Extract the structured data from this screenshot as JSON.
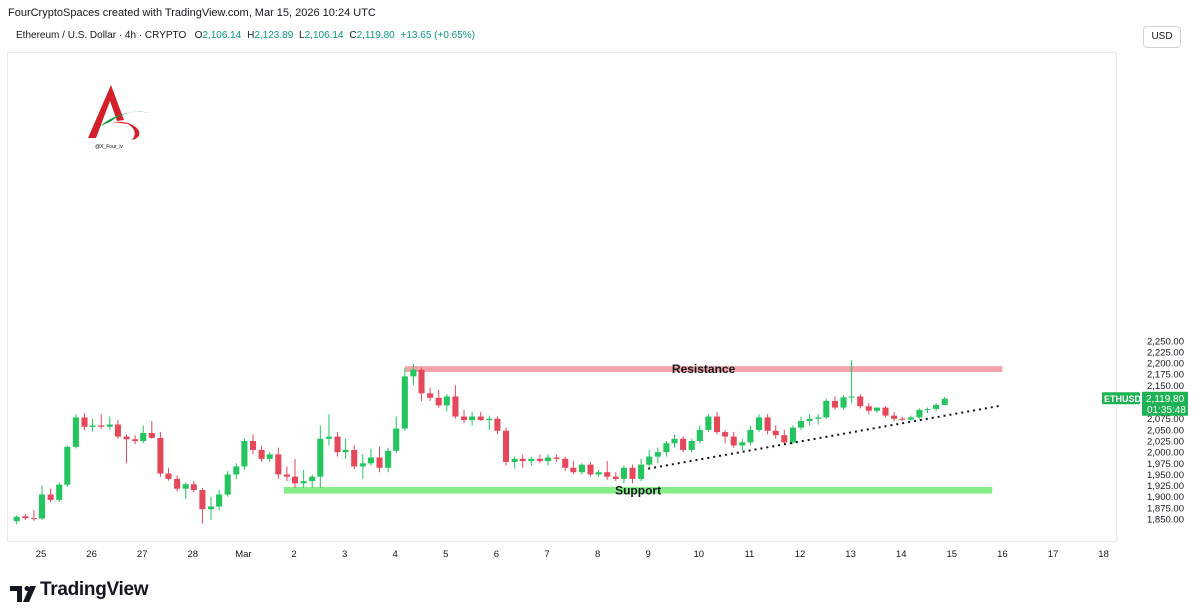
{
  "header": {
    "credit": "FourCryptoSpaces created with TradingView.com, Mar 15, 2026 10:24 UTC",
    "symbol_desc": "Ethereum / U.S. Dollar · 4h · CRYPTO",
    "o_label": "O",
    "o_value": "2,106.14",
    "h_label": "H",
    "h_value": "2,123.89",
    "l_label": "L",
    "l_value": "2,106.14",
    "c_label": "C",
    "c_value": "2,119.80",
    "change": "+13.65 (+0.65%)",
    "currency_button": "USD"
  },
  "logo": {
    "caption": "@X_Four_iv"
  },
  "footer": {
    "brand": "TradingView"
  },
  "price_badge": {
    "ticker": "ETHUSD",
    "price": "2,119.80",
    "countdown": "01:35:48"
  },
  "colors": {
    "up": "#22c55e",
    "down": "#e5485a",
    "resistance": "#f5a3a8",
    "support": "#86ee86",
    "badge": "#1fb254"
  },
  "chart_data": {
    "type": "candlestick",
    "title": "Ethereum / U.S. Dollar · 4h · CRYPTO",
    "xlabel": "",
    "ylabel": "",
    "ylim": [
      1828,
      2265
    ],
    "y_ticks": [
      1850,
      1875,
      1900,
      1925,
      1950,
      1975,
      2000,
      2025,
      2050,
      2075,
      2100,
      2125,
      2150,
      2175,
      2200,
      2225,
      2250
    ],
    "y_tick_labels": [
      "1,850.00",
      "1,875.00",
      "1,900.00",
      "1,925.00",
      "1,950.00",
      "1,975.00",
      "2,000.00",
      "2,025.00",
      "2,050.00",
      "2,075.00",
      "2,100.00",
      "2,125.00",
      "2,150.00",
      "2,175.00",
      "2,200.00",
      "2,225.00",
      "2,250.00"
    ],
    "x_tick_labels": [
      "25",
      "26",
      "27",
      "28",
      "Mar",
      "2",
      "3",
      "4",
      "5",
      "6",
      "7",
      "8",
      "9",
      "10",
      "11",
      "12",
      "13",
      "14",
      "15",
      "16",
      "17",
      "18"
    ],
    "x_tick_days": [
      0,
      1,
      2,
      3,
      4,
      5,
      6,
      7,
      8,
      9,
      10,
      11,
      12,
      13,
      14,
      15,
      16,
      17,
      18,
      19,
      20,
      21
    ],
    "candle_period_days": 0.16667,
    "candles": [
      {
        "t": -0.48,
        "o": 1845,
        "h": 1858,
        "l": 1838,
        "c": 1855
      },
      {
        "t": -0.31,
        "o": 1856,
        "h": 1862,
        "l": 1848,
        "c": 1852
      },
      {
        "t": -0.14,
        "o": 1852,
        "h": 1870,
        "l": 1846,
        "c": 1851
      },
      {
        "t": 0.02,
        "o": 1851,
        "h": 1925,
        "l": 1848,
        "c": 1905
      },
      {
        "t": 0.19,
        "o": 1905,
        "h": 1918,
        "l": 1888,
        "c": 1893
      },
      {
        "t": 0.36,
        "o": 1893,
        "h": 1932,
        "l": 1888,
        "c": 1927
      },
      {
        "t": 0.52,
        "o": 1927,
        "h": 2015,
        "l": 1922,
        "c": 2012
      },
      {
        "t": 0.69,
        "o": 2012,
        "h": 2085,
        "l": 2008,
        "c": 2078
      },
      {
        "t": 0.86,
        "o": 2078,
        "h": 2088,
        "l": 2050,
        "c": 2057
      },
      {
        "t": 1.02,
        "o": 2057,
        "h": 2075,
        "l": 2046,
        "c": 2060
      },
      {
        "t": 1.19,
        "o": 2060,
        "h": 2085,
        "l": 2052,
        "c": 2057
      },
      {
        "t": 1.36,
        "o": 2057,
        "h": 2080,
        "l": 2050,
        "c": 2062
      },
      {
        "t": 1.52,
        "o": 2062,
        "h": 2072,
        "l": 2030,
        "c": 2035
      },
      {
        "t": 1.69,
        "o": 2035,
        "h": 2040,
        "l": 1975,
        "c": 2029
      },
      {
        "t": 1.86,
        "o": 2029,
        "h": 2038,
        "l": 2018,
        "c": 2025
      },
      {
        "t": 2.02,
        "o": 2025,
        "h": 2060,
        "l": 2020,
        "c": 2043
      },
      {
        "t": 2.19,
        "o": 2043,
        "h": 2070,
        "l": 2030,
        "c": 2032
      },
      {
        "t": 2.36,
        "o": 2032,
        "h": 2045,
        "l": 1945,
        "c": 1952
      },
      {
        "t": 2.52,
        "o": 1952,
        "h": 1965,
        "l": 1936,
        "c": 1940
      },
      {
        "t": 2.69,
        "o": 1940,
        "h": 1948,
        "l": 1912,
        "c": 1918
      },
      {
        "t": 2.86,
        "o": 1918,
        "h": 1932,
        "l": 1895,
        "c": 1928
      },
      {
        "t": 3.02,
        "o": 1928,
        "h": 1935,
        "l": 1910,
        "c": 1915
      },
      {
        "t": 3.19,
        "o": 1915,
        "h": 1920,
        "l": 1840,
        "c": 1872
      },
      {
        "t": 3.36,
        "o": 1872,
        "h": 1900,
        "l": 1848,
        "c": 1878
      },
      {
        "t": 3.52,
        "o": 1878,
        "h": 1915,
        "l": 1870,
        "c": 1905
      },
      {
        "t": 3.69,
        "o": 1905,
        "h": 1958,
        "l": 1900,
        "c": 1950
      },
      {
        "t": 3.86,
        "o": 1950,
        "h": 1975,
        "l": 1940,
        "c": 1968
      },
      {
        "t": 4.02,
        "o": 1968,
        "h": 2030,
        "l": 1960,
        "c": 2025
      },
      {
        "t": 4.19,
        "o": 2025,
        "h": 2040,
        "l": 1995,
        "c": 2005
      },
      {
        "t": 4.36,
        "o": 2005,
        "h": 2015,
        "l": 1978,
        "c": 1985
      },
      {
        "t": 4.52,
        "o": 1985,
        "h": 2000,
        "l": 1978,
        "c": 1995
      },
      {
        "t": 4.69,
        "o": 1995,
        "h": 2010,
        "l": 1940,
        "c": 1950
      },
      {
        "t": 4.86,
        "o": 1950,
        "h": 1968,
        "l": 1935,
        "c": 1945
      },
      {
        "t": 5.02,
        "o": 1945,
        "h": 1985,
        "l": 1920,
        "c": 1930
      },
      {
        "t": 5.19,
        "o": 1930,
        "h": 1960,
        "l": 1920,
        "c": 1935
      },
      {
        "t": 5.36,
        "o": 1935,
        "h": 1950,
        "l": 1920,
        "c": 1945
      },
      {
        "t": 5.52,
        "o": 1945,
        "h": 2060,
        "l": 1920,
        "c": 2030
      },
      {
        "t": 5.69,
        "o": 2030,
        "h": 2085,
        "l": 2015,
        "c": 2035
      },
      {
        "t": 5.86,
        "o": 2035,
        "h": 2045,
        "l": 1990,
        "c": 2000
      },
      {
        "t": 6.02,
        "o": 2000,
        "h": 2030,
        "l": 1985,
        "c": 2005
      },
      {
        "t": 6.19,
        "o": 2005,
        "h": 2015,
        "l": 1962,
        "c": 1968
      },
      {
        "t": 6.36,
        "o": 1968,
        "h": 1995,
        "l": 1940,
        "c": 1975
      },
      {
        "t": 6.52,
        "o": 1975,
        "h": 2008,
        "l": 1970,
        "c": 1988
      },
      {
        "t": 6.69,
        "o": 1988,
        "h": 2012,
        "l": 1955,
        "c": 1965
      },
      {
        "t": 6.86,
        "o": 1965,
        "h": 2010,
        "l": 1955,
        "c": 2003
      },
      {
        "t": 7.02,
        "o": 2003,
        "h": 2080,
        "l": 1998,
        "c": 2053
      },
      {
        "t": 7.19,
        "o": 2053,
        "h": 2188,
        "l": 2048,
        "c": 2170
      },
      {
        "t": 7.36,
        "o": 2170,
        "h": 2198,
        "l": 2150,
        "c": 2185
      },
      {
        "t": 7.52,
        "o": 2185,
        "h": 2190,
        "l": 2115,
        "c": 2132
      },
      {
        "t": 7.69,
        "o": 2132,
        "h": 2145,
        "l": 2115,
        "c": 2122
      },
      {
        "t": 7.86,
        "o": 2122,
        "h": 2140,
        "l": 2100,
        "c": 2105
      },
      {
        "t": 8.02,
        "o": 2105,
        "h": 2130,
        "l": 2092,
        "c": 2125
      },
      {
        "t": 8.19,
        "o": 2125,
        "h": 2150,
        "l": 2075,
        "c": 2080
      },
      {
        "t": 8.36,
        "o": 2080,
        "h": 2095,
        "l": 2065,
        "c": 2072
      },
      {
        "t": 8.52,
        "o": 2072,
        "h": 2090,
        "l": 2060,
        "c": 2080
      },
      {
        "t": 8.69,
        "o": 2080,
        "h": 2090,
        "l": 2070,
        "c": 2072
      },
      {
        "t": 8.86,
        "o": 2072,
        "h": 2082,
        "l": 2050,
        "c": 2075
      },
      {
        "t": 9.02,
        "o": 2075,
        "h": 2080,
        "l": 2040,
        "c": 2048
      },
      {
        "t": 9.19,
        "o": 2048,
        "h": 2055,
        "l": 1970,
        "c": 1978
      },
      {
        "t": 9.36,
        "o": 1978,
        "h": 1990,
        "l": 1963,
        "c": 1985
      },
      {
        "t": 9.52,
        "o": 1985,
        "h": 1995,
        "l": 1965,
        "c": 1980
      },
      {
        "t": 9.69,
        "o": 1980,
        "h": 1990,
        "l": 1970,
        "c": 1985
      },
      {
        "t": 9.86,
        "o": 1985,
        "h": 1995,
        "l": 1975,
        "c": 1980
      },
      {
        "t": 10.02,
        "o": 1980,
        "h": 1995,
        "l": 1970,
        "c": 1988
      },
      {
        "t": 10.19,
        "o": 1988,
        "h": 1995,
        "l": 1978,
        "c": 1985
      },
      {
        "t": 10.36,
        "o": 1985,
        "h": 1990,
        "l": 1958,
        "c": 1965
      },
      {
        "t": 10.52,
        "o": 1965,
        "h": 1980,
        "l": 1950,
        "c": 1955
      },
      {
        "t": 10.69,
        "o": 1955,
        "h": 1975,
        "l": 1950,
        "c": 1972
      },
      {
        "t": 10.86,
        "o": 1972,
        "h": 1978,
        "l": 1945,
        "c": 1950
      },
      {
        "t": 11.02,
        "o": 1950,
        "h": 1960,
        "l": 1945,
        "c": 1955
      },
      {
        "t": 11.19,
        "o": 1955,
        "h": 1980,
        "l": 1938,
        "c": 1945
      },
      {
        "t": 11.36,
        "o": 1945,
        "h": 1955,
        "l": 1935,
        "c": 1940
      },
      {
        "t": 11.52,
        "o": 1940,
        "h": 1970,
        "l": 1930,
        "c": 1965
      },
      {
        "t": 11.69,
        "o": 1965,
        "h": 1972,
        "l": 1930,
        "c": 1940
      },
      {
        "t": 11.86,
        "o": 1940,
        "h": 1985,
        "l": 1935,
        "c": 1972
      },
      {
        "t": 12.02,
        "o": 1972,
        "h": 2005,
        "l": 1968,
        "c": 1990
      },
      {
        "t": 12.19,
        "o": 1990,
        "h": 2010,
        "l": 1975,
        "c": 2000
      },
      {
        "t": 12.36,
        "o": 2000,
        "h": 2025,
        "l": 1990,
        "c": 2020
      },
      {
        "t": 12.52,
        "o": 2020,
        "h": 2040,
        "l": 2010,
        "c": 2030
      },
      {
        "t": 12.69,
        "o": 2030,
        "h": 2035,
        "l": 2000,
        "c": 2005
      },
      {
        "t": 12.86,
        "o": 2005,
        "h": 2030,
        "l": 2000,
        "c": 2025
      },
      {
        "t": 13.02,
        "o": 2025,
        "h": 2060,
        "l": 2020,
        "c": 2050
      },
      {
        "t": 13.19,
        "o": 2050,
        "h": 2085,
        "l": 2045,
        "c": 2080
      },
      {
        "t": 13.36,
        "o": 2080,
        "h": 2090,
        "l": 2040,
        "c": 2045
      },
      {
        "t": 13.52,
        "o": 2045,
        "h": 2050,
        "l": 2020,
        "c": 2035
      },
      {
        "t": 13.69,
        "o": 2035,
        "h": 2045,
        "l": 2010,
        "c": 2015
      },
      {
        "t": 13.86,
        "o": 2015,
        "h": 2030,
        "l": 2005,
        "c": 2022
      },
      {
        "t": 14.02,
        "o": 2022,
        "h": 2060,
        "l": 2015,
        "c": 2050
      },
      {
        "t": 14.19,
        "o": 2050,
        "h": 2085,
        "l": 2045,
        "c": 2078
      },
      {
        "t": 14.36,
        "o": 2078,
        "h": 2085,
        "l": 2040,
        "c": 2048
      },
      {
        "t": 14.52,
        "o": 2048,
        "h": 2060,
        "l": 2030,
        "c": 2038
      },
      {
        "t": 14.69,
        "o": 2038,
        "h": 2050,
        "l": 2018,
        "c": 2022
      },
      {
        "t": 14.86,
        "o": 2022,
        "h": 2060,
        "l": 2018,
        "c": 2055
      },
      {
        "t": 15.02,
        "o": 2055,
        "h": 2080,
        "l": 2050,
        "c": 2070
      },
      {
        "t": 15.19,
        "o": 2070,
        "h": 2085,
        "l": 2060,
        "c": 2075
      },
      {
        "t": 15.36,
        "o": 2075,
        "h": 2085,
        "l": 2062,
        "c": 2078
      },
      {
        "t": 15.52,
        "o": 2078,
        "h": 2120,
        "l": 2075,
        "c": 2115
      },
      {
        "t": 15.69,
        "o": 2115,
        "h": 2125,
        "l": 2095,
        "c": 2100
      },
      {
        "t": 15.86,
        "o": 2100,
        "h": 2128,
        "l": 2095,
        "c": 2123
      },
      {
        "t": 16.02,
        "o": 2123,
        "h": 2206,
        "l": 2110,
        "c": 2125
      },
      {
        "t": 16.19,
        "o": 2125,
        "h": 2130,
        "l": 2098,
        "c": 2103
      },
      {
        "t": 16.36,
        "o": 2103,
        "h": 2110,
        "l": 2085,
        "c": 2093
      },
      {
        "t": 16.52,
        "o": 2093,
        "h": 2100,
        "l": 2088,
        "c": 2100
      },
      {
        "t": 16.69,
        "o": 2100,
        "h": 2103,
        "l": 2078,
        "c": 2082
      },
      {
        "t": 16.86,
        "o": 2082,
        "h": 2090,
        "l": 2070,
        "c": 2075
      },
      {
        "t": 17.02,
        "o": 2075,
        "h": 2080,
        "l": 2070,
        "c": 2073
      },
      {
        "t": 17.19,
        "o": 2073,
        "h": 2082,
        "l": 2070,
        "c": 2078
      },
      {
        "t": 17.36,
        "o": 2078,
        "h": 2098,
        "l": 2075,
        "c": 2095
      },
      {
        "t": 17.52,
        "o": 2095,
        "h": 2100,
        "l": 2088,
        "c": 2097
      },
      {
        "t": 17.69,
        "o": 2097,
        "h": 2110,
        "l": 2092,
        "c": 2106
      },
      {
        "t": 17.86,
        "o": 2106,
        "h": 2124,
        "l": 2106,
        "c": 2120
      }
    ],
    "zones": [
      {
        "name": "Resistance",
        "t0": 7.19,
        "t1": 19.0,
        "y0": 2180,
        "y1": 2193
      },
      {
        "name": "Support",
        "t0": 4.8,
        "t1": 18.8,
        "y0": 1907,
        "y1": 1922
      }
    ],
    "trendline": {
      "t0": 12.0,
      "y0": 1963,
      "t1": 19.0,
      "y1": 2105
    },
    "last_price": 2119.8
  }
}
